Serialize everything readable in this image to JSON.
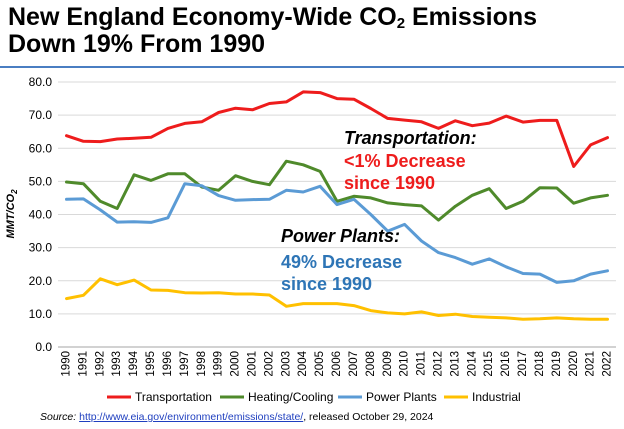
{
  "title": {
    "line1_before": "New England Economy-Wide CO",
    "line1_sub": "2",
    "line1_after": " Emissions",
    "line2": "Down 19% From 1990"
  },
  "source": {
    "label": "Source:",
    "url": "http://www.eia.gov/environment/emissions/state/",
    "released": ", released October 29, 2024"
  },
  "colors": {
    "transportation": "#ee1c1c",
    "heating_cooling": "#4f8a2b",
    "power_plants": "#5b9bd5",
    "industrial": "#ffc000",
    "rule": "#4a7ec2"
  },
  "annotations": [
    {
      "text_lines": [
        "Transportation:"
      ],
      "style": "bold-italic-black"
    },
    {
      "text_lines": [
        "<1% Decrease",
        "since 1990"
      ],
      "style": "bold-red"
    },
    {
      "text_lines": [
        "Power Plants:"
      ],
      "style": "bold-italic-black"
    },
    {
      "text_lines": [
        "49% Decrease",
        "since 1990"
      ],
      "style": "bold-blue"
    }
  ],
  "chart_data": {
    "type": "line",
    "title": "New England Economy-Wide CO2 Emissions Down 19% From 1990",
    "ylabel": "MMT/CO2",
    "xlabel": "",
    "ylim": [
      0,
      80
    ],
    "yticks": [
      "0.0",
      "10.0",
      "20.0",
      "30.0",
      "40.0",
      "50.0",
      "60.0",
      "70.0",
      "80.0"
    ],
    "grid": "horizontal",
    "legend": "bottom",
    "x": [
      "1990",
      "1991",
      "1992",
      "1993",
      "1994",
      "1995",
      "1996",
      "1997",
      "1998",
      "1999",
      "2000",
      "2001",
      "2002",
      "2003",
      "2004",
      "2005",
      "2006",
      "2007",
      "2008",
      "2009",
      "2010",
      "2011",
      "2012",
      "2013",
      "2014",
      "2015",
      "2016",
      "2017",
      "2018",
      "2019",
      "2020",
      "2021",
      "2022"
    ],
    "series": [
      {
        "name": "Transportation",
        "values": [
          63.8,
          62.1,
          62.0,
          62.8,
          63.0,
          63.3,
          66.0,
          67.5,
          68.0,
          70.8,
          72.1,
          71.6,
          73.5,
          74.0,
          77.0,
          76.8,
          75.0,
          74.8,
          72.0,
          69.0,
          68.5,
          68.0,
          66.0,
          68.3,
          66.8,
          67.6,
          69.7,
          67.9,
          68.4,
          68.4,
          54.5,
          61.0,
          63.2
        ]
      },
      {
        "name": "Heating/Cooling",
        "values": [
          49.8,
          49.3,
          44.0,
          41.8,
          52.0,
          50.3,
          52.3,
          52.3,
          48.3,
          47.3,
          51.7,
          50.0,
          49.0,
          56.1,
          55.0,
          53.0,
          44.0,
          45.5,
          45.0,
          43.5,
          43.0,
          42.6,
          38.3,
          42.5,
          45.8,
          47.8,
          41.8,
          44.0,
          48.1,
          48.0,
          43.4,
          45.0,
          45.8
        ]
      },
      {
        "name": "Power Plants",
        "values": [
          44.6,
          44.7,
          41.4,
          37.7,
          37.8,
          37.6,
          39.0,
          49.3,
          48.7,
          45.7,
          44.3,
          44.5,
          44.6,
          47.3,
          46.8,
          48.5,
          43.0,
          44.6,
          40.0,
          35.0,
          37.0,
          32.0,
          28.5,
          27.0,
          25.0,
          26.6,
          24.2,
          22.2,
          22.0,
          19.5,
          20.0,
          22.0,
          23.0
        ]
      },
      {
        "name": "Industrial",
        "values": [
          14.6,
          15.6,
          20.6,
          18.8,
          20.2,
          17.2,
          17.1,
          16.4,
          16.3,
          16.4,
          16.0,
          16.0,
          15.7,
          12.3,
          13.1,
          13.1,
          13.1,
          12.5,
          11.0,
          10.3,
          10.0,
          10.6,
          9.5,
          9.9,
          9.2,
          9.0,
          8.8,
          8.4,
          8.5,
          8.8,
          8.5,
          8.4,
          8.4
        ]
      }
    ]
  }
}
